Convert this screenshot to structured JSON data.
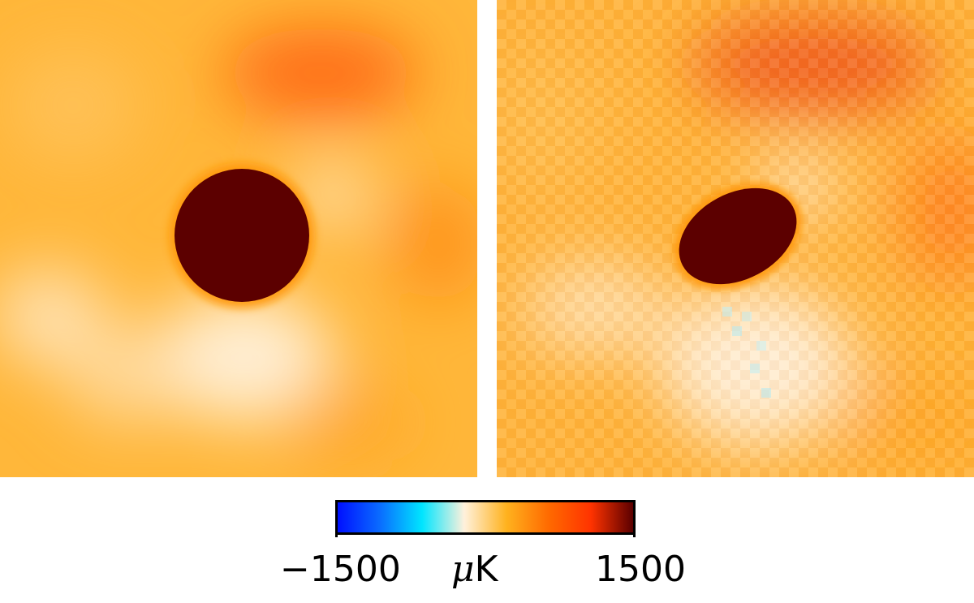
{
  "colorbar": {
    "min_label": "−1500",
    "max_label": "1500",
    "unit_symbol": "μ",
    "unit_letter": "K",
    "min_value": -1500,
    "max_value": 1500,
    "colors": [
      "#0010ff",
      "#0a6cff",
      "#00e5ff",
      "#fff1dc",
      "#ffb21e",
      "#ff6a00",
      "#ff3300",
      "#5a0000"
    ]
  },
  "panels": [
    {
      "name": "smoothed-map",
      "source_color": "#5c0000",
      "background_color": "#ffb52f",
      "hot_color": "#ff6a12",
      "cool_color": "#fff0d8"
    },
    {
      "name": "pixelated-map",
      "source_color": "#5c0000",
      "background_color": "#ffb52f",
      "hot_color": "#ef5a18",
      "cool_color": "#fff0d8",
      "cold_color": "#b8e8f0"
    }
  ]
}
